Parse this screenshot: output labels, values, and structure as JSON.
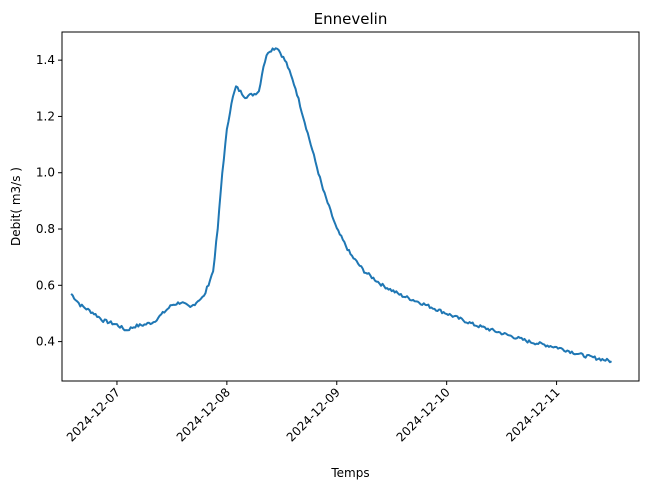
{
  "chart_data": {
    "type": "line",
    "title": "Ennevelin",
    "xlabel": "Temps",
    "ylabel": "Debit( m3/s )",
    "xlim": [
      "2024-12-06T12:00",
      "2024-12-11T18:00"
    ],
    "ylim": [
      0.26,
      1.5
    ],
    "x_ticks": [
      "2024-12-07",
      "2024-12-08",
      "2024-12-09",
      "2024-12-10",
      "2024-12-11"
    ],
    "y_ticks": [
      "0.4",
      "0.6",
      "0.8",
      "1.0",
      "1.2",
      "1.4"
    ],
    "y_tick_values": [
      0.4,
      0.6,
      0.8,
      1.0,
      1.2,
      1.4
    ],
    "grid": false,
    "series": [
      {
        "color": "#1f77b4",
        "x": [
          "2024-12-06T14:00",
          "2024-12-06T16:00",
          "2024-12-06T19:00",
          "2024-12-06T21:00",
          "2024-12-07T00:00",
          "2024-12-07T02:00",
          "2024-12-07T04:00",
          "2024-12-07T06:00",
          "2024-12-07T08:00",
          "2024-12-07T10:00",
          "2024-12-07T12:00",
          "2024-12-07T14:00",
          "2024-12-07T16:00",
          "2024-12-07T18:00",
          "2024-12-07T19:00",
          "2024-12-07T21:00",
          "2024-12-07T22:00",
          "2024-12-07T23:00",
          "2024-12-08T00:00",
          "2024-12-08T01:00",
          "2024-12-08T02:00",
          "2024-12-08T04:00",
          "2024-12-08T06:00",
          "2024-12-08T07:00",
          "2024-12-08T08:00",
          "2024-12-08T09:00",
          "2024-12-08T10:00",
          "2024-12-08T11:00",
          "2024-12-08T13:00",
          "2024-12-08T15:00",
          "2024-12-08T17:00",
          "2024-12-08T19:00",
          "2024-12-08T21:00",
          "2024-12-09T00:00",
          "2024-12-09T03:00",
          "2024-12-09T06:00",
          "2024-12-09T10:00",
          "2024-12-09T14:00",
          "2024-12-09T18:00",
          "2024-12-10T00:00",
          "2024-12-10T06:00",
          "2024-12-10T12:00",
          "2024-12-10T18:00",
          "2024-12-11T00:00",
          "2024-12-11T06:00",
          "2024-12-11T12:00"
        ],
        "y": [
          0.57,
          0.53,
          0.5,
          0.475,
          0.46,
          0.44,
          0.455,
          0.46,
          0.47,
          0.5,
          0.53,
          0.54,
          0.52,
          0.55,
          0.56,
          0.65,
          0.8,
          1.0,
          1.15,
          1.25,
          1.305,
          1.27,
          1.28,
          1.29,
          1.38,
          1.43,
          1.44,
          1.445,
          1.39,
          1.3,
          1.18,
          1.06,
          0.94,
          0.8,
          0.71,
          0.65,
          0.6,
          0.565,
          0.54,
          0.5,
          0.46,
          0.43,
          0.4,
          0.38,
          0.35,
          0.33
        ]
      }
    ]
  }
}
